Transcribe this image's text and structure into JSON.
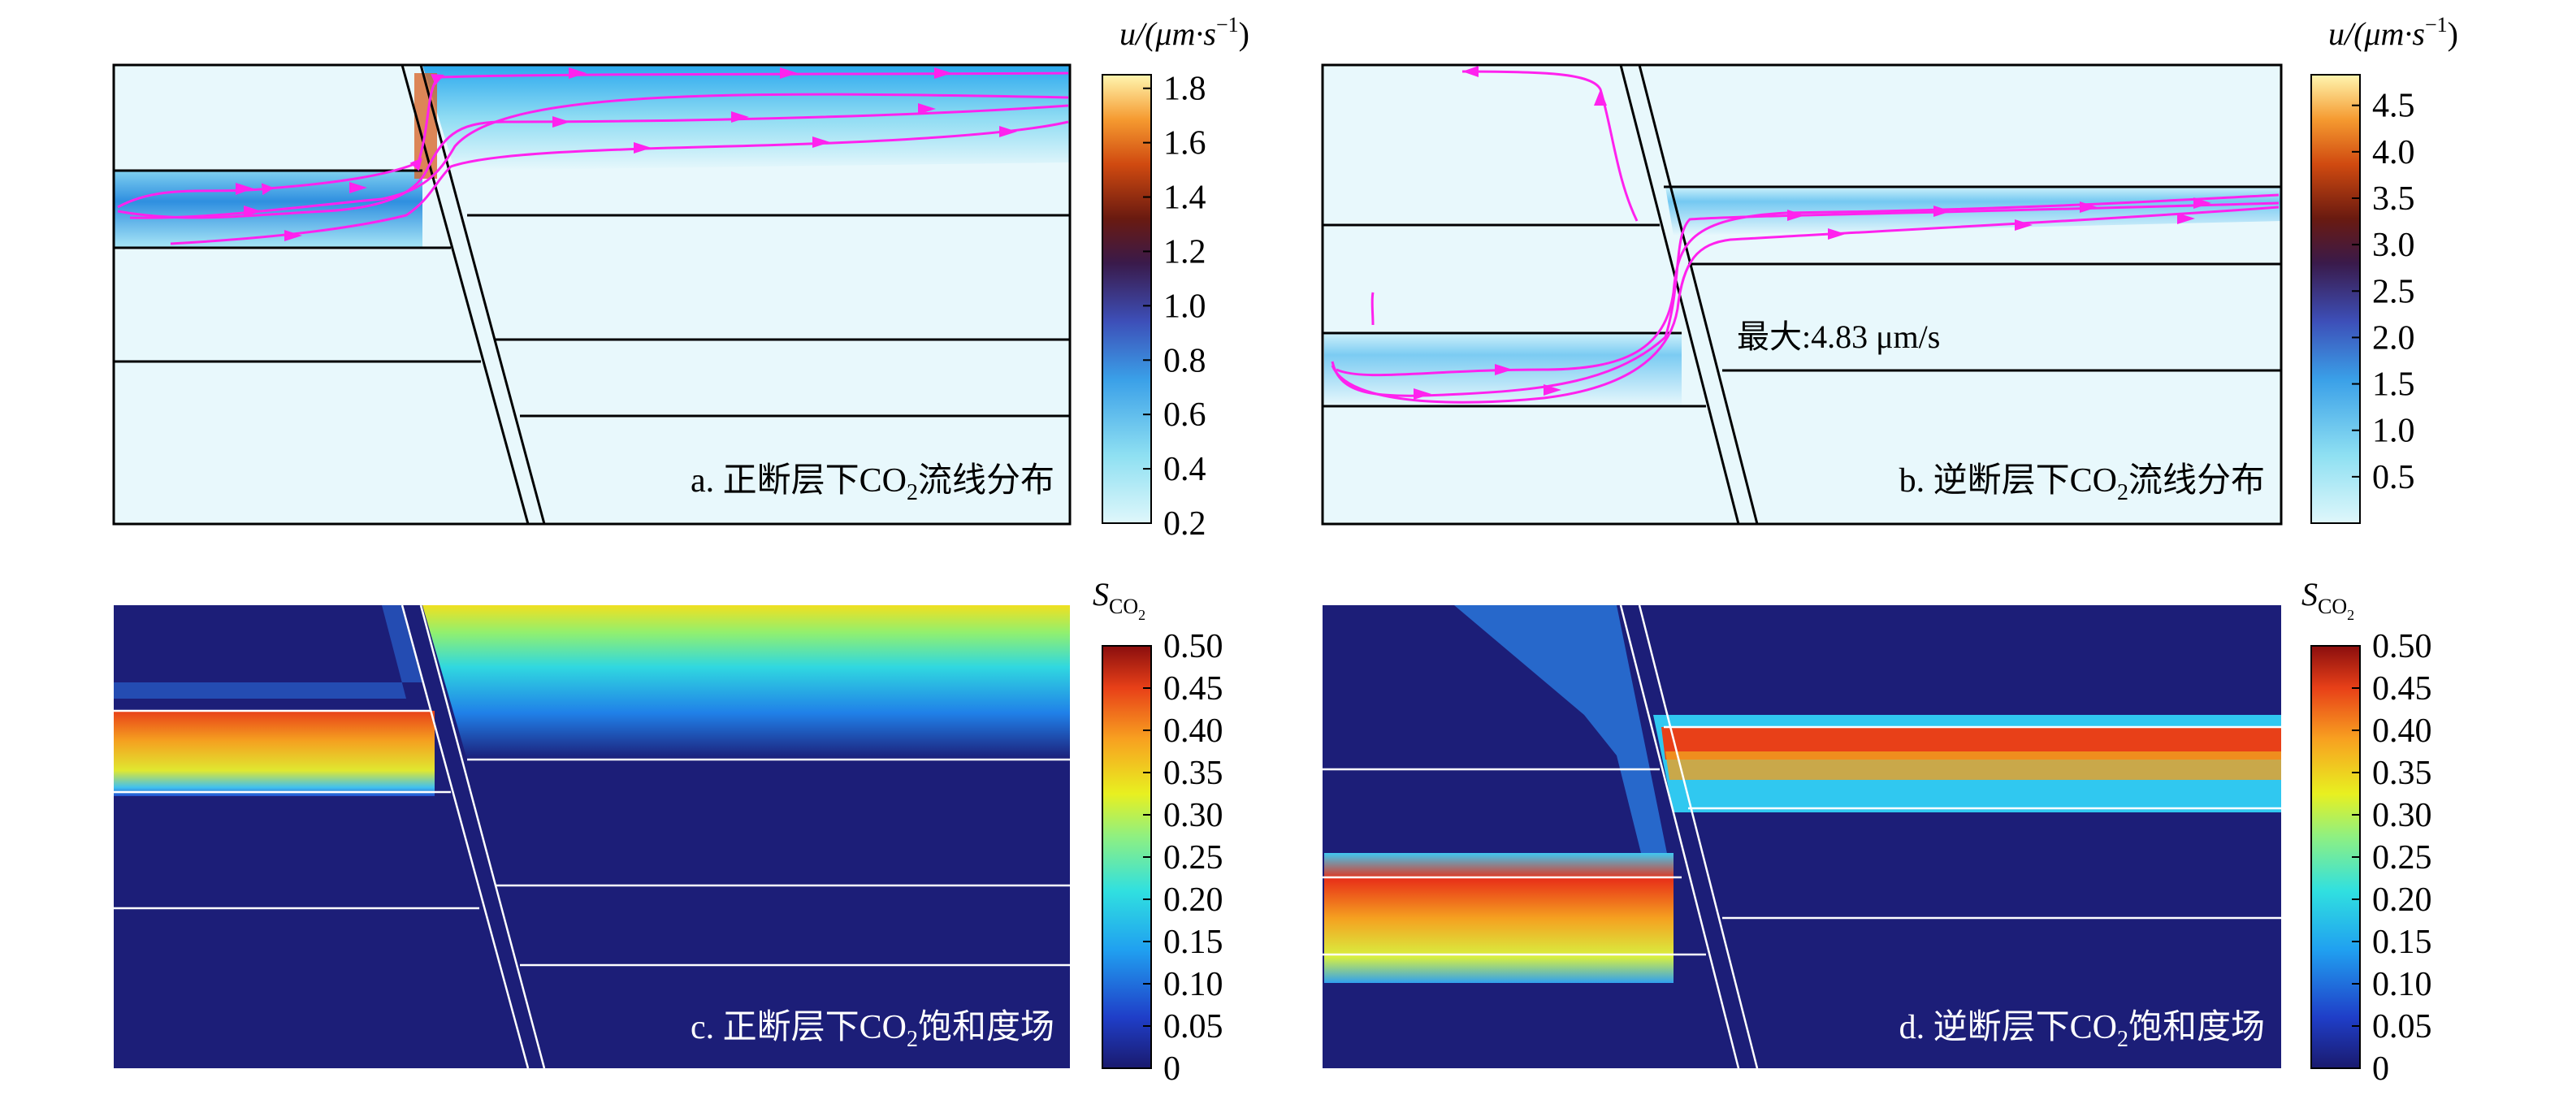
{
  "panels": [
    {
      "id": "a",
      "caption_pre": "a. 正断层下CO",
      "caption_sub": "2",
      "caption_post": "流线分布"
    },
    {
      "id": "b",
      "caption_pre": "b. 逆断层下CO",
      "caption_sub": "2",
      "caption_post": "流线分布"
    },
    {
      "id": "c",
      "caption_pre": "c. 正断层下CO",
      "caption_sub": "2",
      "caption_post": "饱和度场"
    },
    {
      "id": "d",
      "caption_pre": "d. 逆断层下CO",
      "caption_sub": "2",
      "caption_post": "饱和度场"
    }
  ],
  "annotation_b": "最大:4.83 μm/s",
  "colorbars": {
    "a": {
      "unit_main": "u/(μm·s",
      "unit_sup": "−1",
      "unit_close": ")",
      "ticks": [
        "1.8",
        "1.6",
        "1.4",
        "1.2",
        "1.0",
        "0.8",
        "0.6",
        "0.4",
        "0.2"
      ],
      "range": [
        0.2,
        1.85
      ],
      "colormap": "cool-to-warm (light cyan, blue, purple, dark red, orange, yellow)"
    },
    "b": {
      "unit_main": "u/(μm·s",
      "unit_sup": "−1",
      "unit_close": ")",
      "ticks": [
        "4.5",
        "4.0",
        "3.5",
        "3.0",
        "2.5",
        "2.0",
        "1.5",
        "1.0",
        "0.5"
      ],
      "range": [
        0.0,
        4.83
      ],
      "colormap": "cool-to-warm (light cyan, blue, purple, dark red, orange, yellow)"
    },
    "c": {
      "unit_main": "S",
      "unit_sub": "CO",
      "unit_subsub": "2",
      "ticks": [
        "0.50",
        "0.45",
        "0.40",
        "0.35",
        "0.30",
        "0.25",
        "0.20",
        "0.15",
        "0.10",
        "0.05",
        "0"
      ],
      "range": [
        0,
        0.5
      ],
      "colormap": "jet"
    },
    "d": {
      "unit_main": "S",
      "unit_sub": "CO",
      "unit_subsub": "2",
      "ticks": [
        "0.50",
        "0.45",
        "0.40",
        "0.35",
        "0.30",
        "0.25",
        "0.20",
        "0.15",
        "0.10",
        "0.05",
        "0"
      ],
      "range": [
        0,
        0.5
      ],
      "colormap": "jet"
    }
  },
  "colors": {
    "streamline": "#ff22ee",
    "field_background_velocity": "#e8f8fc",
    "field_background_saturation": "#1c1e78"
  }
}
